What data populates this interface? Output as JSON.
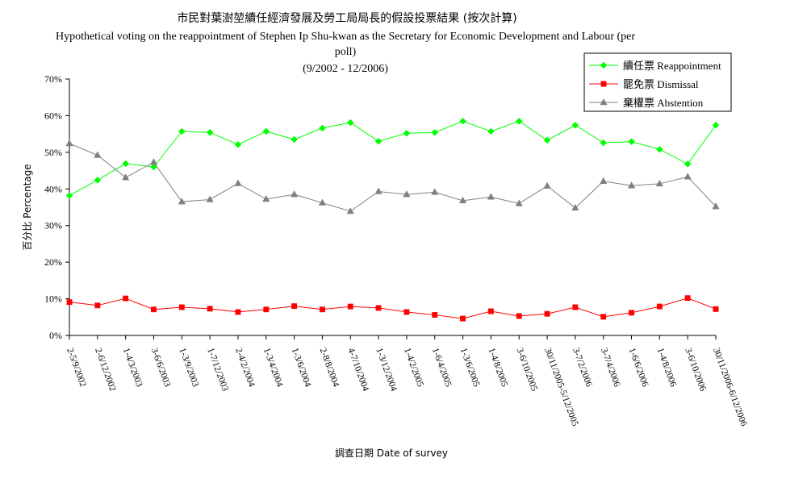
{
  "chart_data": {
    "type": "line",
    "title": "市民對葉澍堃續任經濟發展及勞工局局長的假設投票結果 (按次計算)",
    "subtitle_line1": "Hypothetical voting on the reappointment of Stephen Ip Shu-kwan as the Secretary for Economic Development and Labour (per",
    "subtitle_line2": "poll)",
    "period": "(9/2002 - 12/2006)",
    "xlabel": "調查日期 Date of survey",
    "ylabel": "百分比 Percentage",
    "ylim": [
      0,
      70
    ],
    "yticks": [
      0,
      10,
      20,
      30,
      40,
      50,
      60,
      70
    ],
    "ytick_labels": [
      "0%",
      "10%",
      "20%",
      "30%",
      "40%",
      "50%",
      "60%",
      "70%"
    ],
    "legend_position": "top-right",
    "grid": false,
    "categories": [
      "2-5/9/2002",
      "2-6/12/2002",
      "1-4/3/2003",
      "3-6/6/2003",
      "1-3/9/2003",
      "1-7/12/2003",
      "2-4/2/2004",
      "1-3/4/2004",
      "1-3/6/2004",
      "2-8/8/2004",
      "4-7/10/2004",
      "1-3/12/2004",
      "1-4/2/2005",
      "1-6/4/2005",
      "1-3/6/2005",
      "1-4/8/2005",
      "3-6/10/2005",
      "30/11/2005-5/12/2005",
      "3-7/2/2006",
      "3-7/4/2006",
      "1-6/6/2006",
      "1-4/8/2006",
      "3-6/10/2006",
      "30/11/2006-6/12/2006"
    ],
    "series": [
      {
        "name": "續任票 Reappointment",
        "color": "#00ff00",
        "marker": "diamond",
        "values": [
          38.2,
          42.4,
          46.9,
          46.0,
          55.7,
          55.4,
          52.1,
          55.7,
          53.5,
          56.6,
          58.1,
          53.0,
          55.2,
          55.4,
          58.5,
          55.7,
          58.5,
          53.3,
          57.4,
          52.6,
          52.9,
          50.8,
          46.8,
          57.4
        ]
      },
      {
        "name": "罷免票 Dismissal",
        "color": "#ff0000",
        "marker": "square",
        "values": [
          9.1,
          8.2,
          10.1,
          7.1,
          7.7,
          7.3,
          6.4,
          7.1,
          8.0,
          7.1,
          7.9,
          7.5,
          6.4,
          5.6,
          4.6,
          6.6,
          5.3,
          5.9,
          7.7,
          5.1,
          6.2,
          7.9,
          10.2,
          7.2
        ]
      },
      {
        "name": "棄權票 Abstention",
        "color": "#808080",
        "marker": "triangle",
        "values": [
          52.4,
          49.2,
          43.1,
          47.3,
          36.5,
          37.1,
          41.5,
          37.2,
          38.5,
          36.2,
          33.9,
          39.3,
          38.5,
          39.1,
          36.8,
          37.8,
          36.0,
          40.8,
          34.8,
          42.1,
          40.9,
          41.4,
          43.3,
          35.2
        ]
      }
    ]
  }
}
